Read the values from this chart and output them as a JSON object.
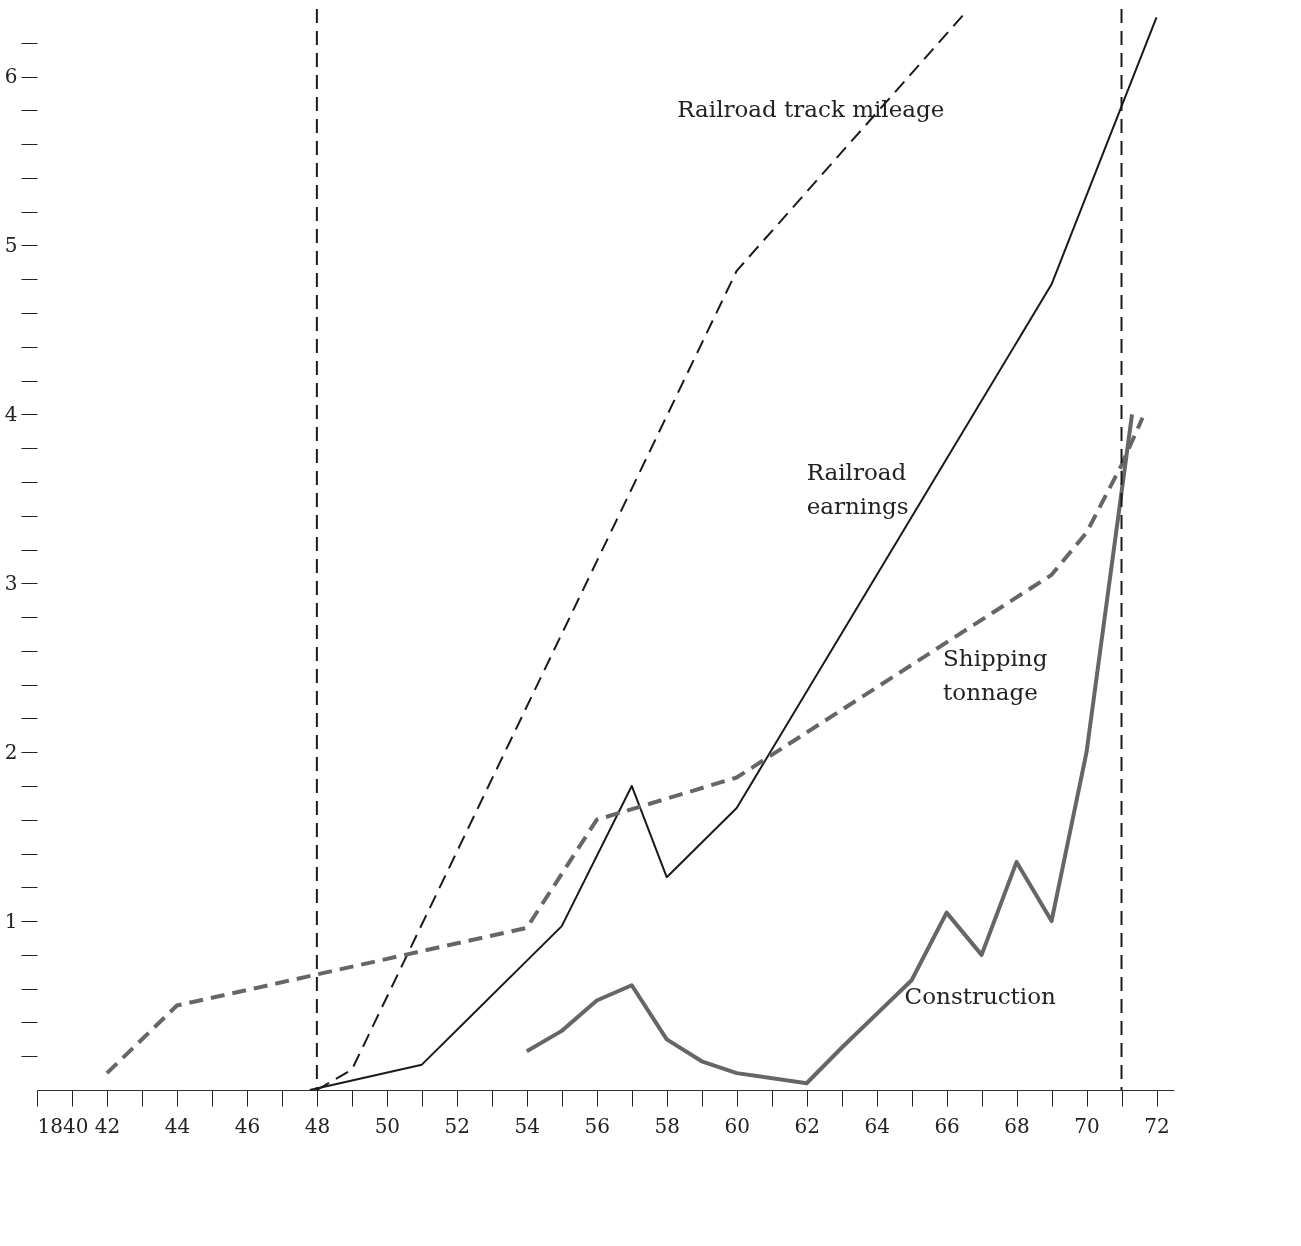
{
  "chart_data": {
    "type": "line",
    "xlim": [
      1840,
      1872.5
    ],
    "ylim": [
      0,
      6.4
    ],
    "xticks": [
      {
        "value": 1840,
        "label": "1840"
      },
      {
        "value": 1841,
        "label": null
      },
      {
        "value": 1842,
        "label": "42"
      },
      {
        "value": 1843,
        "label": null
      },
      {
        "value": 1844,
        "label": "44"
      },
      {
        "value": 1845,
        "label": null
      },
      {
        "value": 1846,
        "label": "46"
      },
      {
        "value": 1847,
        "label": null
      },
      {
        "value": 1848,
        "label": "48"
      },
      {
        "value": 1849,
        "label": null
      },
      {
        "value": 1850,
        "label": "50"
      },
      {
        "value": 1851,
        "label": null
      },
      {
        "value": 1852,
        "label": "52"
      },
      {
        "value": 1853,
        "label": null
      },
      {
        "value": 1854,
        "label": "54"
      },
      {
        "value": 1855,
        "label": null
      },
      {
        "value": 1856,
        "label": "56"
      },
      {
        "value": 1857,
        "label": null
      },
      {
        "value": 1858,
        "label": "58"
      },
      {
        "value": 1859,
        "label": null
      },
      {
        "value": 1860,
        "label": "60"
      },
      {
        "value": 1861,
        "label": null
      },
      {
        "value": 1862,
        "label": "62"
      },
      {
        "value": 1863,
        "label": null
      },
      {
        "value": 1864,
        "label": "64"
      },
      {
        "value": 1865,
        "label": null
      },
      {
        "value": 1866,
        "label": "66"
      },
      {
        "value": 1867,
        "label": null
      },
      {
        "value": 1868,
        "label": "68"
      },
      {
        "value": 1869,
        "label": null
      },
      {
        "value": 1870,
        "label": "70"
      },
      {
        "value": 1871,
        "label": null
      },
      {
        "value": 1872,
        "label": "72"
      }
    ],
    "yticks": [
      {
        "value": 0.2,
        "label": null
      },
      {
        "value": 0.4,
        "label": null
      },
      {
        "value": 0.6,
        "label": null
      },
      {
        "value": 0.8,
        "label": null
      },
      1,
      {
        "value": 1.2,
        "label": null
      },
      {
        "value": 1.4,
        "label": null
      },
      {
        "value": 1.6,
        "label": null
      },
      {
        "value": 1.8,
        "label": null
      },
      2,
      {
        "value": 2.2,
        "label": null
      },
      {
        "value": 2.4,
        "label": null
      },
      {
        "value": 2.6,
        "label": null
      },
      {
        "value": 2.8,
        "label": null
      },
      3,
      {
        "value": 3.2,
        "label": null
      },
      {
        "value": 3.4,
        "label": null
      },
      {
        "value": 3.6,
        "label": null
      },
      {
        "value": 3.8,
        "label": null
      },
      4,
      {
        "value": 4.2,
        "label": null
      },
      {
        "value": 4.4,
        "label": null
      },
      {
        "value": 4.6,
        "label": null
      },
      {
        "value": 4.8,
        "label": null
      },
      5,
      {
        "value": 5.2,
        "label": null
      },
      {
        "value": 5.4,
        "label": null
      },
      {
        "value": 5.6,
        "label": null
      },
      {
        "value": 5.8,
        "label": null
      },
      6,
      {
        "value": 6.2,
        "label": null
      }
    ],
    "grid": false,
    "series": [
      {
        "name": "Railroad track mileage",
        "color": "#1a1a1a",
        "line_style": "dashed",
        "x": [
          1848,
          1849,
          1860,
          1866.5
        ],
        "values": [
          0,
          0.12,
          4.85,
          6.37
        ]
      },
      {
        "name": "Railroad earnings",
        "color": "#1a1a1a",
        "line_style": "solid",
        "x": [
          1847.8,
          1851,
          1855,
          1857,
          1858,
          1860,
          1869,
          1872
        ],
        "values": [
          0,
          0.15,
          0.97,
          1.8,
          1.26,
          1.67,
          4.77,
          6.35
        ]
      },
      {
        "name": "Shipping tonnage",
        "color": "#666666",
        "line_style": "dashed",
        "x": [
          1842,
          1844,
          1854,
          1856,
          1860,
          1869,
          1870,
          1871,
          1871.6
        ],
        "values": [
          0.1,
          0.5,
          0.96,
          1.6,
          1.85,
          3.05,
          3.3,
          3.7,
          3.98
        ]
      },
      {
        "name": "Construction",
        "color": "#666666",
        "line_style": "solid",
        "x": [
          1854,
          1855,
          1856,
          1857,
          1858,
          1859,
          1860,
          1862,
          1863,
          1865,
          1866,
          1867,
          1868,
          1869,
          1870,
          1871.3
        ],
        "values": [
          0.23,
          0.35,
          0.53,
          0.62,
          0.3,
          0.17,
          0.1,
          0.04,
          0.25,
          0.65,
          1.05,
          0.8,
          1.35,
          1.0,
          2.0,
          4.0
        ]
      }
    ],
    "ref_lines": [
      {
        "axis": "x",
        "value": 1848,
        "label": null,
        "color": "#1a1a1a",
        "line_style": "dashed"
      },
      {
        "axis": "x",
        "value": 1871,
        "label": null,
        "color": "#1a1a1a",
        "line_style": "dashed"
      }
    ]
  }
}
